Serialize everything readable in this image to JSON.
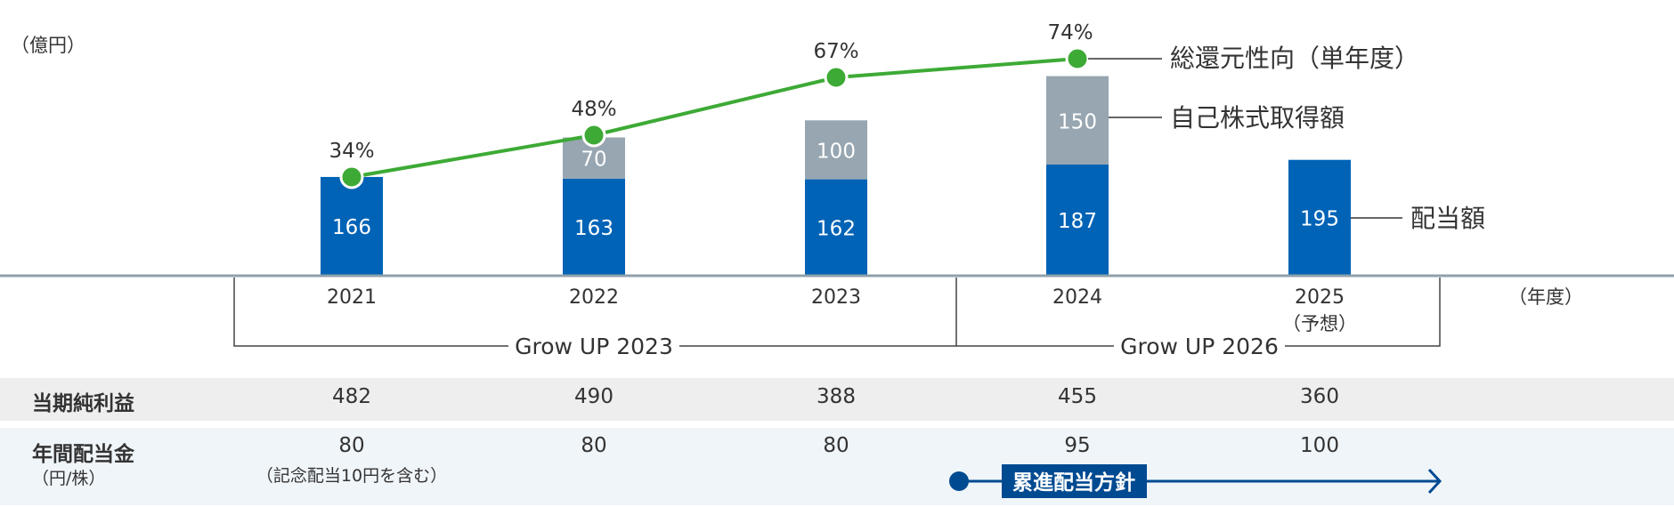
{
  "chart_data": {
    "type": "bar",
    "stacked": true,
    "unit_label": "（億円）",
    "x_unit_label": "（年度）",
    "categories": [
      "2021",
      "2022",
      "2023",
      "2024",
      "2025"
    ],
    "category_notes": [
      "",
      "",
      "",
      "",
      "（予想）"
    ],
    "series": [
      {
        "name": "配当額",
        "kind": "bar",
        "color": "#0063b6",
        "values": [
          166,
          163,
          162,
          187,
          195
        ]
      },
      {
        "name": "自己株式取得額",
        "kind": "bar",
        "color": "#97a6b1",
        "values": [
          null,
          70,
          100,
          150,
          null
        ]
      },
      {
        "name": "総還元性向（単年度）",
        "kind": "line",
        "color": "#3daa35",
        "values": [
          34,
          48,
          67,
          74,
          null
        ],
        "labels": [
          "34%",
          "48%",
          "67%",
          "74%",
          ""
        ]
      }
    ],
    "periods": [
      {
        "label": "Grow UP 2023",
        "from": "2021",
        "to": "2023"
      },
      {
        "label": "Grow UP 2026",
        "from": "2024",
        "to": "2025"
      }
    ],
    "grid": false,
    "legend": "right-inline"
  },
  "table": {
    "rows": [
      {
        "label": "当期純利益",
        "sub": "",
        "values": [
          "482",
          "490",
          "388",
          "455",
          "360"
        ]
      },
      {
        "label": "年間配当金",
        "sub": "（円/株）",
        "values": [
          "80",
          "80",
          "80",
          "95",
          "100"
        ],
        "notes": [
          "（記念配当10円を含む）",
          "",
          "",
          "",
          ""
        ]
      }
    ],
    "policy": {
      "label": "累進配当方針",
      "color": "#004a91"
    }
  }
}
